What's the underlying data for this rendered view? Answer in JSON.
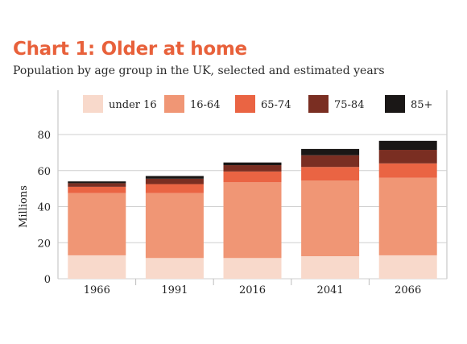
{
  "title": "Chart 1: Older at home",
  "subtitle": "Population by age group in the UK, selected and estimated years",
  "chart_data": {
    "type": "bar",
    "stacked": true,
    "categories": [
      "1966",
      "1991",
      "2016",
      "2041",
      "2066"
    ],
    "ylabel": "Millions",
    "ylim": [
      0,
      80
    ],
    "yticks": [
      0,
      20,
      40,
      60,
      80
    ],
    "legend_position": "top",
    "series": [
      {
        "name": "under 16",
        "color": "#f8d9cb",
        "values": [
          13,
          11.5,
          11.5,
          12.5,
          13
        ]
      },
      {
        "name": "16-64",
        "color": "#f09675",
        "values": [
          34.5,
          36,
          42,
          42,
          43
        ]
      },
      {
        "name": "65-74",
        "color": "#ea6443",
        "values": [
          3.5,
          5,
          6,
          7.5,
          8
        ]
      },
      {
        "name": "75-84",
        "color": "#7a2e22",
        "values": [
          2,
          3,
          3.5,
          6.5,
          7.5
        ]
      },
      {
        "name": "85+",
        "color": "#1a1716",
        "values": [
          1,
          1.5,
          1.5,
          3.5,
          5
        ]
      }
    ]
  }
}
